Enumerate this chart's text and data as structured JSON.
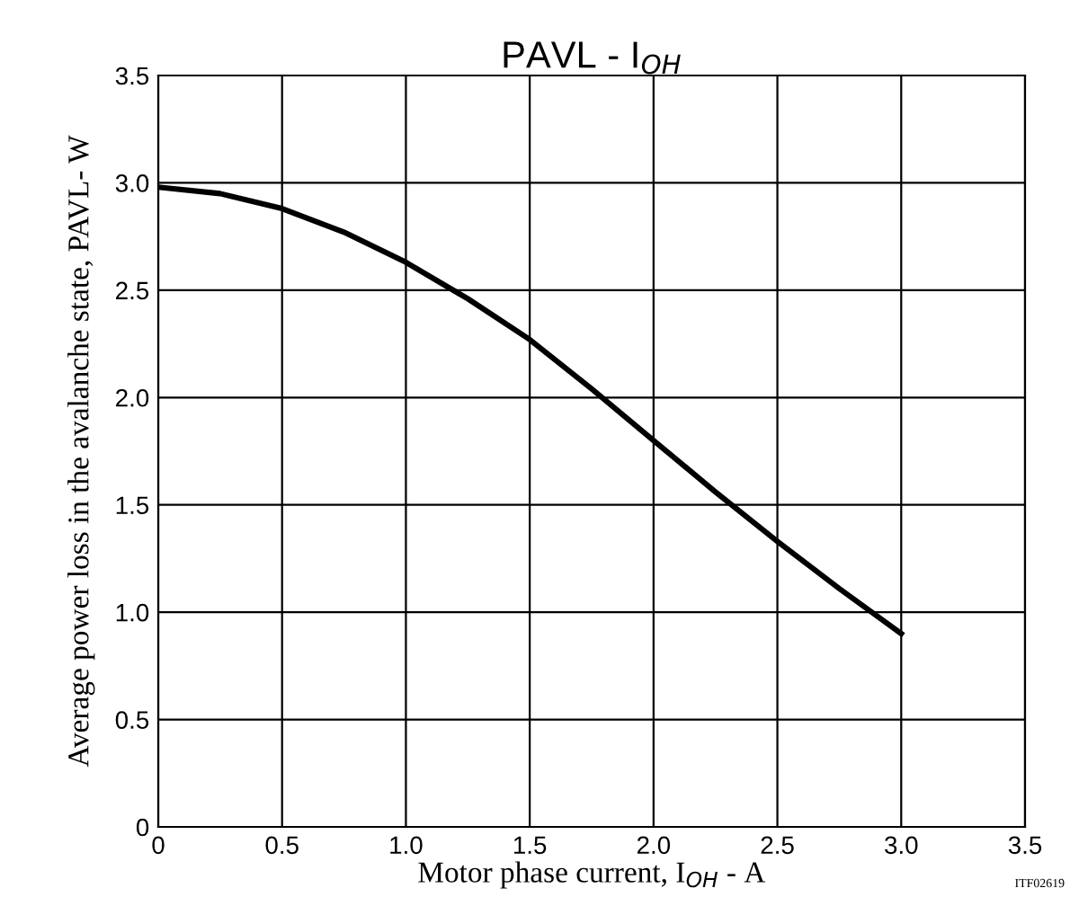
{
  "chart_data": {
    "type": "line",
    "title": "PAVL - I$_{OH}$",
    "xlabel": "Motor phase current, I$_{OH}$ - A",
    "ylabel": "Average power loss in the avalanche state, PAVL- W",
    "annotations": [
      "ITF02619"
    ],
    "x": [
      0,
      0.25,
      0.5,
      0.75,
      1.0,
      1.25,
      1.5,
      1.75,
      2.0,
      2.25,
      2.5,
      2.75,
      3.0
    ],
    "series": [
      {
        "color": "#000000",
        "values": [
          2.98,
          2.95,
          2.88,
          2.77,
          2.63,
          2.46,
          2.27,
          2.04,
          1.8,
          1.56,
          1.33,
          1.11,
          0.9
        ]
      }
    ],
    "xlim": [
      0,
      3.5
    ],
    "ylim": [
      0,
      3.5
    ],
    "xticks": [
      0,
      0.5,
      {
        "value": 1,
        "label": "1.0"
      },
      1.5,
      {
        "value": 2,
        "label": "2.0"
      },
      2.5,
      {
        "value": 3,
        "label": "3.0"
      },
      3.5
    ],
    "yticks": [
      0,
      0.5,
      {
        "value": 1,
        "label": "1.0"
      },
      1.5,
      {
        "value": 2,
        "label": "2.0"
      },
      2.5,
      {
        "value": 3,
        "label": "3.0"
      },
      3.5
    ],
    "grid": true,
    "legend": false,
    "marker": "none",
    "line_style": "solid"
  }
}
